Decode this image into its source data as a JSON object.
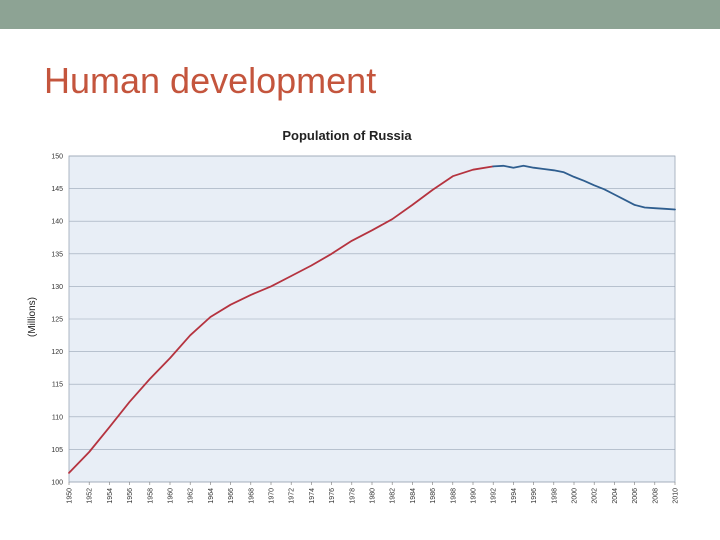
{
  "slide": {
    "title": "Human development",
    "top_bar_color": "#8da394",
    "title_color": "#c4553d"
  },
  "chart_data": {
    "type": "line",
    "title": "Population of Russia",
    "ylabel": "(Millions)",
    "xlabel": "",
    "ylim": [
      100,
      150
    ],
    "yticks": [
      100,
      105,
      110,
      115,
      120,
      125,
      130,
      135,
      140,
      145,
      150
    ],
    "xlim": [
      1950,
      2010
    ],
    "xticks": [
      1950,
      1952,
      1954,
      1956,
      1958,
      1960,
      1962,
      1964,
      1966,
      1968,
      1970,
      1972,
      1974,
      1976,
      1978,
      1980,
      1982,
      1984,
      1986,
      1988,
      1990,
      1992,
      1994,
      1996,
      1998,
      2000,
      2002,
      2004,
      2006,
      2008,
      2010
    ],
    "grid": true,
    "plot_background": "#e8eef6",
    "series": [
      {
        "color": "#b5333f",
        "x": [
          1950,
          1952,
          1954,
          1956,
          1958,
          1960,
          1962,
          1964,
          1966,
          1968,
          1970,
          1972,
          1974,
          1976,
          1978,
          1980,
          1982,
          1984,
          1986,
          1988,
          1990,
          1992
        ],
        "values": [
          101.4,
          104.6,
          108.4,
          112.3,
          115.8,
          119.0,
          122.5,
          125.3,
          127.2,
          128.7,
          130.0,
          131.6,
          133.2,
          135.0,
          137.0,
          138.6,
          140.3,
          142.5,
          144.8,
          146.9,
          147.9,
          148.4
        ]
      },
      {
        "color": "#2f5e8f",
        "x": [
          1992,
          1993,
          1994,
          1995,
          1996,
          1997,
          1998,
          1999,
          2000,
          2001,
          2002,
          2003,
          2004,
          2005,
          2006,
          2007,
          2008,
          2009,
          2010
        ],
        "values": [
          148.4,
          148.5,
          148.2,
          148.5,
          148.2,
          148.0,
          147.8,
          147.5,
          146.8,
          146.2,
          145.5,
          144.9,
          144.1,
          143.3,
          142.5,
          142.1,
          142.0,
          141.9,
          141.8
        ]
      }
    ]
  }
}
